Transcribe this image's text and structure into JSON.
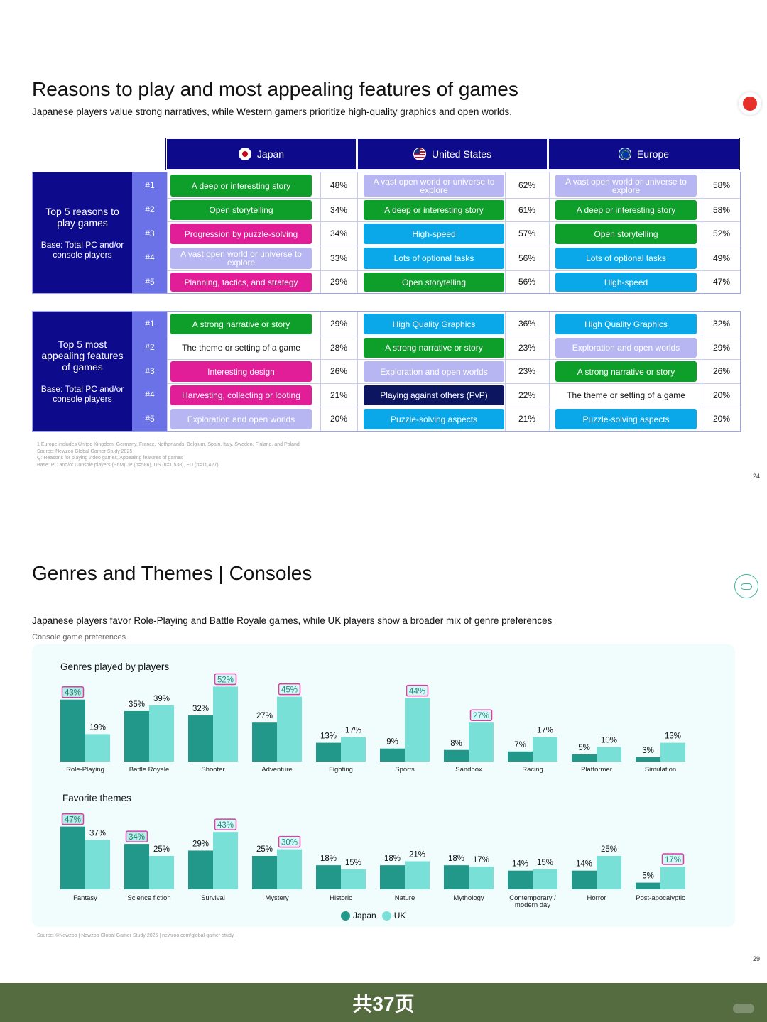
{
  "page1": {
    "title": "Reasons to play and most appealing features of games",
    "subtitle": "Japanese players value strong narratives, while Western gamers prioritize high-quality graphics and open worlds.",
    "regions": [
      "Japan",
      "United States",
      "Europe"
    ],
    "ranks": [
      "#1",
      "#2",
      "#3",
      "#4",
      "#5"
    ],
    "section1": {
      "label": "Top 5 reasons to play games",
      "base": "Base: Total PC and/or console players",
      "japan": [
        {
          "text": "A deep or interesting story",
          "pct": "48%",
          "color": "green"
        },
        {
          "text": "Open storytelling",
          "pct": "34%",
          "color": "green"
        },
        {
          "text": "Progression by puzzle-solving",
          "pct": "34%",
          "color": "pink"
        },
        {
          "text": "A vast open world or universe to explore",
          "pct": "33%",
          "color": "lav"
        },
        {
          "text": "Planning, tactics, and strategy",
          "pct": "29%",
          "color": "pink"
        }
      ],
      "us": [
        {
          "text": "A vast open world or universe to explore",
          "pct": "62%",
          "color": "lav"
        },
        {
          "text": "A deep or interesting story",
          "pct": "61%",
          "color": "green"
        },
        {
          "text": "High-speed",
          "pct": "57%",
          "color": "blue"
        },
        {
          "text": "Lots of optional tasks",
          "pct": "56%",
          "color": "blue"
        },
        {
          "text": "Open storytelling",
          "pct": "56%",
          "color": "green"
        }
      ],
      "europe": [
        {
          "text": "A vast open world or universe to explore",
          "pct": "58%",
          "color": "lav"
        },
        {
          "text": "A deep or interesting story",
          "pct": "58%",
          "color": "green"
        },
        {
          "text": "Open storytelling",
          "pct": "52%",
          "color": "green"
        },
        {
          "text": "Lots of optional tasks",
          "pct": "49%",
          "color": "blue"
        },
        {
          "text": "High-speed",
          "pct": "47%",
          "color": "blue"
        }
      ]
    },
    "section2": {
      "label": "Top 5 most appealing features of games",
      "base": "Base: Total PC and/or console players",
      "japan": [
        {
          "text": "A strong narrative or story",
          "pct": "29%",
          "color": "green"
        },
        {
          "text": "The theme or setting of a game",
          "pct": "28%",
          "color": "none"
        },
        {
          "text": "Interesting design",
          "pct": "26%",
          "color": "pink"
        },
        {
          "text": "Harvesting, collecting or looting",
          "pct": "21%",
          "color": "pink"
        },
        {
          "text": "Exploration and open worlds",
          "pct": "20%",
          "color": "lav"
        }
      ],
      "us": [
        {
          "text": "High Quality Graphics",
          "pct": "36%",
          "color": "blue"
        },
        {
          "text": "A strong narrative or story",
          "pct": "23%",
          "color": "green"
        },
        {
          "text": "Exploration and open worlds",
          "pct": "23%",
          "color": "lav"
        },
        {
          "text": "Playing against others (PvP)",
          "pct": "22%",
          "color": "navy"
        },
        {
          "text": "Puzzle-solving aspects",
          "pct": "21%",
          "color": "blue"
        }
      ],
      "europe": [
        {
          "text": "High Quality Graphics",
          "pct": "32%",
          "color": "blue"
        },
        {
          "text": "Exploration and open worlds",
          "pct": "29%",
          "color": "lav"
        },
        {
          "text": "A strong narrative or story",
          "pct": "26%",
          "color": "green"
        },
        {
          "text": "The theme or setting of a game",
          "pct": "20%",
          "color": "none"
        },
        {
          "text": "Puzzle-solving aspects",
          "pct": "20%",
          "color": "blue"
        }
      ]
    },
    "footnotes": [
      "1 Europe includes United Kingdom, Germany, France, Netherlands, Belgium, Spain, Italy, Sweden, Finland, and Poland",
      "Source: Newzoo Global Gamer Study 2025",
      "Q: Reasons for playing video games, Appealing features of games",
      "Base: PC and/or Console players (P6M) JP (n=586), US (n=1,538), EU (n=11,427)"
    ],
    "page_number": "24"
  },
  "page2": {
    "title": "Genres and Themes | Consoles",
    "subtitle": "Japanese players favor Role-Playing and Battle Royale games, while UK players show a broader mix of genre preferences",
    "note": "Console game preferences",
    "source_prefix": "Source: ©Newzoo | Newzoo Global Gamer Study 2025 | ",
    "source_link": "newzoo.com/global-gamer-study",
    "page_number": "29",
    "legend": [
      "Japan",
      "UK"
    ]
  },
  "colors": {
    "japan": "#21988a",
    "uk": "#79e0d8",
    "highlight": "#d63fa6",
    "navy": "#0d0a8c"
  },
  "chart_data": [
    {
      "type": "bar",
      "title": "Genres played by players",
      "categories": [
        "Role-Playing",
        "Battle Royale",
        "Shooter",
        "Adventure",
        "Fighting",
        "Sports",
        "Sandbox",
        "Racing",
        "Platformer",
        "Simulation"
      ],
      "series": [
        {
          "name": "Japan",
          "values": [
            43,
            35,
            32,
            27,
            13,
            9,
            8,
            7,
            5,
            3
          ]
        },
        {
          "name": "UK",
          "values": [
            19,
            39,
            52,
            45,
            17,
            44,
            27,
            17,
            10,
            13
          ]
        }
      ],
      "highlighted": [
        {
          "series": "Japan",
          "category": "Role-Playing"
        },
        {
          "series": "UK",
          "category": "Shooter"
        },
        {
          "series": "UK",
          "category": "Adventure"
        },
        {
          "series": "UK",
          "category": "Sports"
        },
        {
          "series": "UK",
          "category": "Sandbox"
        }
      ],
      "unit": "%"
    },
    {
      "type": "bar",
      "title": "Favorite themes",
      "categories": [
        "Fantasy",
        "Science fiction",
        "Survival",
        "Mystery",
        "Historic",
        "Nature",
        "Mythology",
        "Contemporary / modern day",
        "Horror",
        "Post-apocalyptic"
      ],
      "series": [
        {
          "name": "Japan",
          "values": [
            47,
            34,
            29,
            25,
            18,
            18,
            18,
            14,
            14,
            5
          ]
        },
        {
          "name": "UK",
          "values": [
            37,
            25,
            43,
            30,
            15,
            21,
            17,
            15,
            25,
            17
          ]
        }
      ],
      "highlighted": [
        {
          "series": "Japan",
          "category": "Fantasy"
        },
        {
          "series": "Japan",
          "category": "Science fiction"
        },
        {
          "series": "UK",
          "category": "Survival"
        },
        {
          "series": "UK",
          "category": "Mystery"
        },
        {
          "series": "UK",
          "category": "Post-apocalyptic"
        }
      ],
      "unit": "%"
    }
  ],
  "footer": {
    "text": "共37页"
  }
}
